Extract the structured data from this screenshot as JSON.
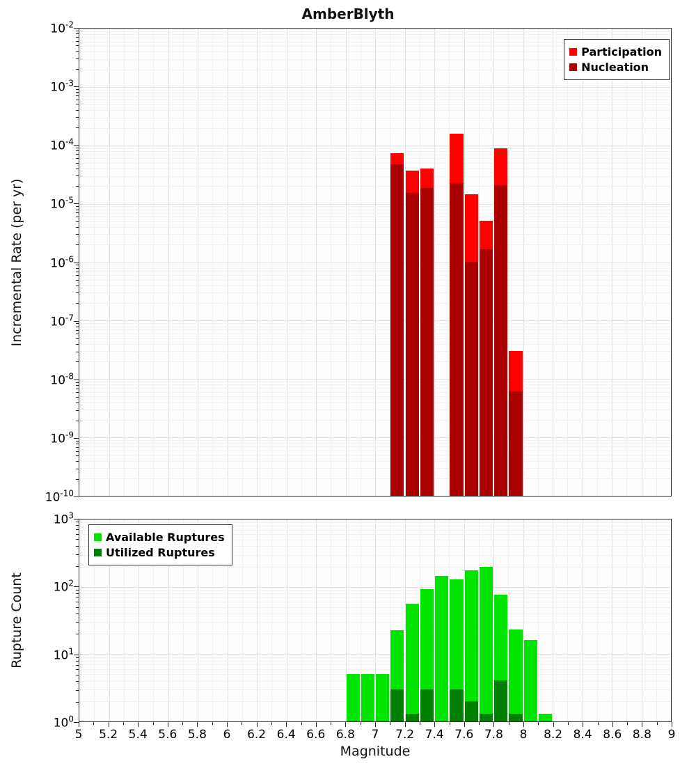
{
  "title": "AmberBlyth",
  "axes": {
    "x_label": "Magnitude",
    "x_range": [
      5,
      9
    ],
    "x_tick_step": 0.2,
    "x_ticks": [
      "5",
      "5.2",
      "5.4",
      "5.6",
      "5.8",
      "6",
      "6.2",
      "6.4",
      "6.6",
      "6.8",
      "7",
      "7.2",
      "7.4",
      "7.6",
      "7.8",
      "8",
      "8.2",
      "8.4",
      "8.6",
      "8.8",
      "9"
    ],
    "top_panel": {
      "y_label": "Incremental Rate (per yr)",
      "y_scale": "log",
      "y_tick_exponents": [
        -2,
        -3,
        -4,
        -5,
        -6,
        -7,
        -8,
        -9,
        -10
      ],
      "y_min_exp": -10,
      "y_max_exp": -2
    },
    "bottom_panel": {
      "y_label": "Rupture Count",
      "y_scale": "log",
      "y_tick_exponents": [
        3,
        2,
        1,
        0
      ],
      "y_min_exp": 0,
      "y_max_exp": 3
    }
  },
  "legends": {
    "top": {
      "position": "top-right",
      "items": [
        {
          "label": "Participation",
          "color": "#ff0000"
        },
        {
          "label": "Nucleation",
          "color": "#aa0000"
        }
      ]
    },
    "bottom": {
      "position": "top-left",
      "items": [
        {
          "label": "Available Ruptures",
          "color": "#00e400"
        },
        {
          "label": "Utilized Ruptures",
          "color": "#008000"
        }
      ]
    }
  },
  "chart_data": [
    {
      "type": "bar",
      "panel": "top",
      "title": "AmberBlyth",
      "xlabel": "Magnitude",
      "ylabel": "Incremental Rate (per yr)",
      "y_scale": "log",
      "ylim": [
        1e-10,
        0.01
      ],
      "xlim": [
        5,
        9
      ],
      "bin_width": 0.1,
      "grid": true,
      "legend_position": "top-right",
      "categories": [
        7.15,
        7.25,
        7.35,
        7.55,
        7.65,
        7.75,
        7.85,
        7.95
      ],
      "series": [
        {
          "name": "Participation",
          "color": "#ff0000",
          "values": [
            7e-05,
            3.6e-05,
            3.9e-05,
            0.00015,
            1.4e-05,
            5e-06,
            8.5e-05,
            3e-08
          ]
        },
        {
          "name": "Nucleation",
          "color": "#aa0000",
          "values": [
            4.5e-05,
            1.5e-05,
            1.8e-05,
            2.2e-05,
            1e-06,
            1.6e-06,
            2e-05,
            6e-09
          ]
        }
      ]
    },
    {
      "type": "bar",
      "panel": "bottom",
      "xlabel": "Magnitude",
      "ylabel": "Rupture Count",
      "y_scale": "log",
      "ylim": [
        1,
        1000
      ],
      "xlim": [
        5,
        9
      ],
      "bin_width": 0.1,
      "grid": true,
      "legend_position": "top-left",
      "categories": [
        6.85,
        6.95,
        7.05,
        7.15,
        7.25,
        7.35,
        7.45,
        7.55,
        7.65,
        7.75,
        7.85,
        7.95,
        8.05,
        8.15
      ],
      "series": [
        {
          "name": "Available Ruptures",
          "color": "#00e400",
          "values": [
            5,
            5,
            5,
            22,
            55,
            90,
            140,
            125,
            170,
            190,
            75,
            23,
            16,
            1
          ]
        },
        {
          "name": "Utilized Ruptures",
          "color": "#008000",
          "values": [
            0,
            0,
            0,
            3,
            1,
            3,
            0,
            3,
            2,
            1,
            4,
            1,
            0,
            0
          ]
        }
      ]
    }
  ]
}
